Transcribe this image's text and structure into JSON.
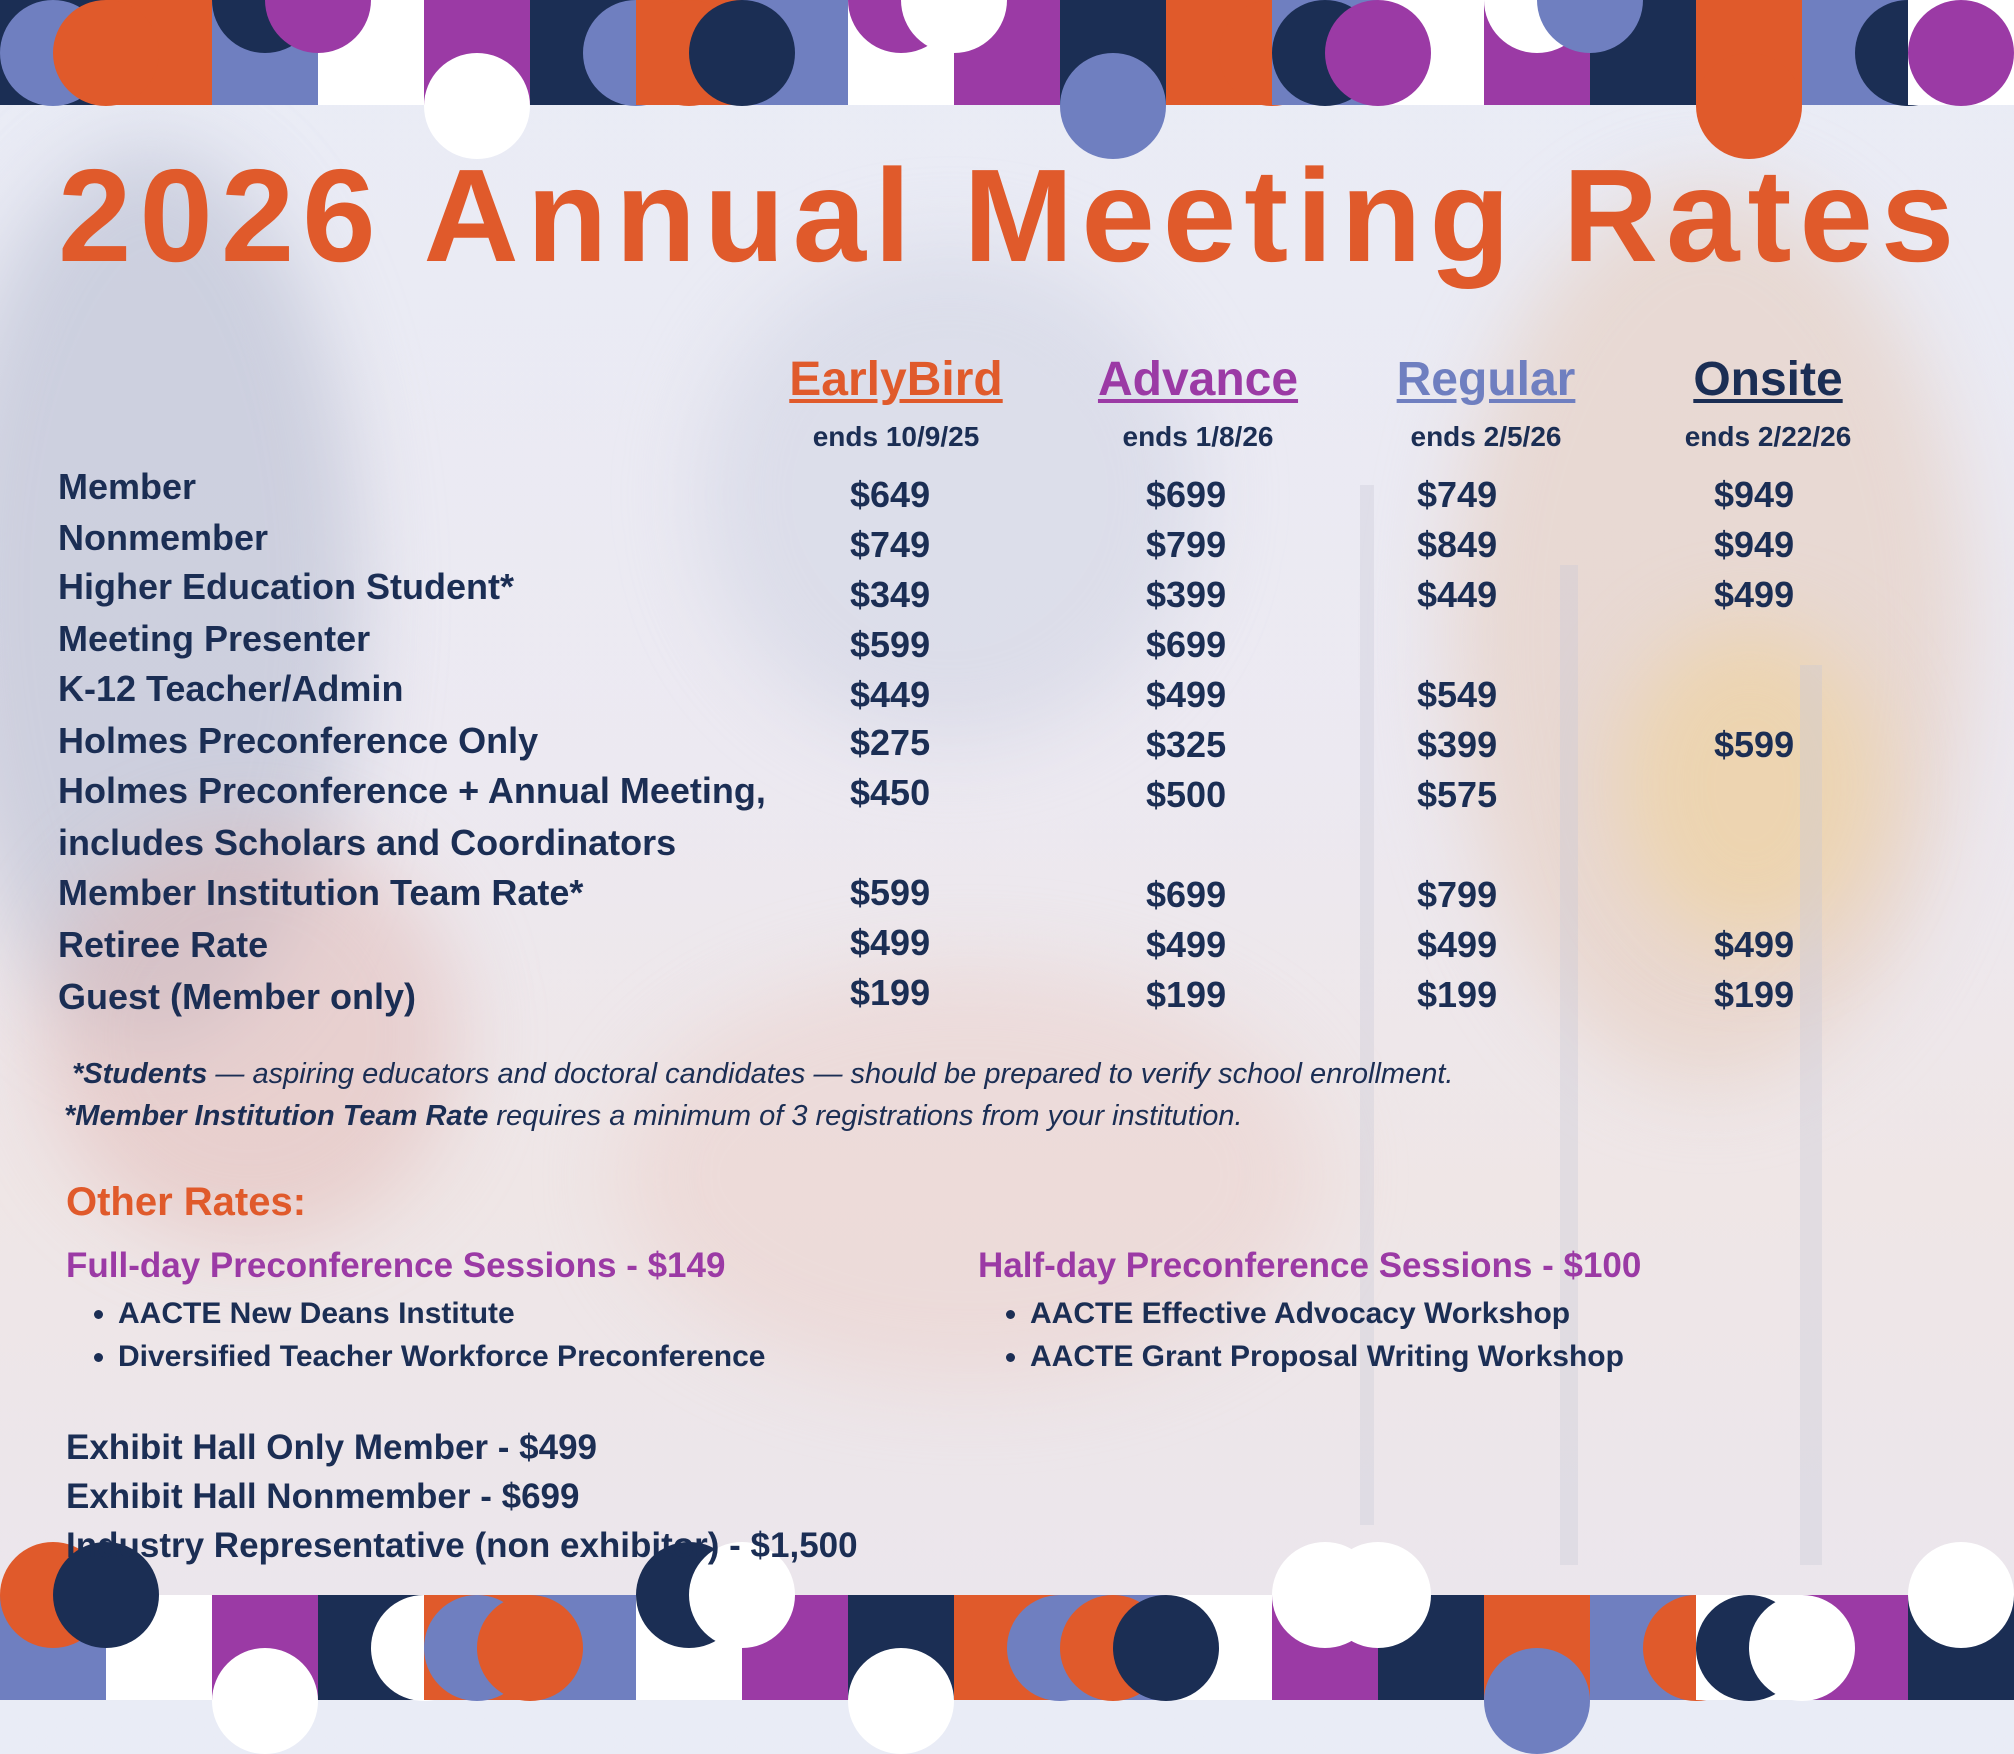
{
  "title": "2026 Annual Meeting Rates",
  "colors": {
    "accent_orange": "#e05a2b",
    "accent_purple": "#9b3aa5",
    "accent_blue": "#6f7fc0",
    "navy": "#1b2e54"
  },
  "columns": [
    {
      "name": "EarlyBird",
      "ends": "ends 10/9/25",
      "color": "#e05a2b"
    },
    {
      "name": "Advance",
      "ends": "ends 1/8/26",
      "color": "#9b3aa5"
    },
    {
      "name": "Regular",
      "ends": "ends 2/5/26",
      "color": "#6f7fc0"
    },
    {
      "name": "Onsite",
      "ends": "ends 2/22/26",
      "color": "#1b2e54"
    }
  ],
  "rows": [
    {
      "label": "Member",
      "prices": [
        "$649",
        "$699",
        "$749",
        "$949"
      ]
    },
    {
      "label": "Nonmember",
      "prices": [
        "$749",
        "$799",
        "$849",
        "$949"
      ]
    },
    {
      "label": "Higher Education Student*",
      "prices": [
        "$349",
        "$399",
        "$449",
        "$499"
      ]
    },
    {
      "label": "Meeting Presenter",
      "prices": [
        "$599",
        "$699",
        "",
        ""
      ]
    },
    {
      "label": "K-12 Teacher/Admin",
      "prices": [
        "$449",
        "$499",
        "$549",
        ""
      ]
    },
    {
      "label": "Holmes Preconference Only",
      "prices": [
        "$275",
        "$325",
        "$399",
        "$599"
      ]
    },
    {
      "label": "Holmes Preconference + Annual Meeting,",
      "label2": "includes Scholars and Coordinators",
      "prices": [
        "$450",
        "$500",
        "$575",
        ""
      ]
    },
    {
      "label": "Member Institution Team Rate*",
      "prices": [
        "$599",
        "$699",
        "$799",
        ""
      ]
    },
    {
      "label": "Retiree Rate",
      "prices": [
        "$499",
        "$499",
        "$499",
        "$499"
      ]
    },
    {
      "label": "Guest (Member only)",
      "prices": [
        "$199",
        "$199",
        "$199",
        "$199"
      ]
    }
  ],
  "notes": {
    "students_bold": "*Students",
    "students_text": " — aspiring educators and doctoral candidates — should be prepared to verify school enrollment.",
    "team_bold": "*Member Institution Team Rate",
    "team_text": " requires a minimum of 3 registrations from your institution."
  },
  "other_rates": {
    "title": "Other Rates:",
    "full_day": {
      "heading": "Full-day Preconference Sessions  -  $149",
      "items": [
        "AACTE New Deans Institute",
        "Diversified Teacher Workforce Preconference"
      ]
    },
    "half_day": {
      "heading": "Half-day Preconference Sessions -  $100",
      "items": [
        "AACTE Effective Advocacy Workshop",
        "AACTE Grant Proposal Writing Workshop"
      ]
    },
    "exhibit": [
      "Exhibit Hall Only Member - $499",
      "Exhibit Hall Nonmember - $699",
      "Industry Representative (non exhibitor) - $1,500"
    ]
  }
}
